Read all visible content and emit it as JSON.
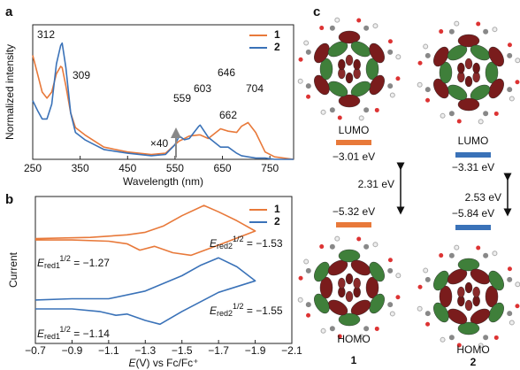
{
  "chart_data": [
    {
      "type": "line",
      "panel_label": "a",
      "xlabel": "Wavelength (nm)",
      "ylabel": "Normalized intensity",
      "x": [
        250,
        260,
        270,
        280,
        290,
        300,
        309,
        312,
        320,
        330,
        340,
        360,
        380,
        400,
        450,
        500,
        530,
        550,
        559,
        570,
        580,
        600,
        603,
        620,
        646,
        662,
        680,
        690,
        704,
        720,
        740,
        760,
        800
      ],
      "series": [
        {
          "name": "1",
          "color": "#e8793a",
          "values": [
            0.85,
            0.7,
            0.55,
            0.5,
            0.55,
            0.7,
            0.76,
            0.75,
            0.6,
            0.38,
            0.26,
            0.2,
            0.15,
            0.1,
            0.06,
            0.04,
            0.05,
            0.12,
            0.15,
            0.17,
            0.19,
            0.2,
            0.2,
            0.17,
            0.25,
            0.23,
            0.22,
            0.27,
            0.3,
            0.22,
            0.06,
            0.02,
            0
          ]
        },
        {
          "name": "2",
          "color": "#3a72b8",
          "values": [
            0.48,
            0.4,
            0.33,
            0.33,
            0.45,
            0.78,
            0.93,
            0.95,
            0.75,
            0.38,
            0.22,
            0.16,
            0.12,
            0.08,
            0.05,
            0.03,
            0.04,
            0.12,
            0.19,
            0.16,
            0.17,
            0.27,
            0.28,
            0.18,
            0.1,
            0.1,
            0.05,
            0.03,
            0.02,
            0.01,
            0.01,
            0,
            0
          ]
        }
      ],
      "xlim": [
        250,
        800
      ],
      "ylim": [
        0,
        1.1
      ],
      "xticks": [
        250,
        350,
        450,
        550,
        650,
        750
      ],
      "annotations": [
        "312",
        "309",
        "559",
        "603",
        "646",
        "662",
        "704",
        "×40"
      ]
    },
    {
      "type": "line",
      "panel_label": "b",
      "xlabel": {
        "symbol": "E",
        "text": "(V) vs Fc/Fc⁺"
      },
      "ylabel": "Current",
      "series": [
        {
          "name": "1",
          "color": "#e8793a",
          "x": [
            -0.7,
            -0.9,
            -1.1,
            -1.2,
            -1.27,
            -1.35,
            -1.45,
            -1.55,
            -1.7,
            -1.9,
            -1.8,
            -1.7,
            -1.62,
            -1.5,
            -1.4,
            -1.3,
            -1.2,
            -1.0,
            -0.7
          ],
          "values": [
            6.6,
            6.6,
            6.5,
            6.3,
            5.8,
            6.1,
            5.6,
            5.4,
            6.2,
            7.3,
            8.1,
            8.8,
            9.3,
            8.5,
            7.7,
            7.2,
            7.0,
            6.8,
            6.7
          ]
        },
        {
          "name": "2",
          "color": "#3a72b8",
          "x": [
            -0.7,
            -0.9,
            -1.05,
            -1.14,
            -1.2,
            -1.3,
            -1.38,
            -1.5,
            -1.7,
            -1.9,
            -1.8,
            -1.7,
            -1.6,
            -1.5,
            -1.3,
            -1.1,
            -0.9,
            -0.7
          ],
          "values": [
            1.2,
            1.2,
            1.0,
            0.7,
            0.8,
            0.3,
            0.0,
            1.0,
            2.5,
            3.4,
            4.5,
            5.2,
            4.6,
            3.8,
            2.6,
            2.0,
            2.0,
            1.9
          ]
        }
      ],
      "xlim": [
        -0.7,
        -2.1
      ],
      "ylim": [
        -1.5,
        10
      ],
      "xticks": [
        {
          "value": -0.7,
          "label": "−0.7"
        },
        {
          "value": -0.9,
          "label": "−0.9"
        },
        {
          "value": -1.1,
          "label": "−1.1"
        },
        {
          "value": -1.3,
          "label": "−1.3"
        },
        {
          "value": -1.5,
          "label": "−1.5"
        },
        {
          "value": -1.7,
          "label": "−1.7"
        },
        {
          "value": -1.9,
          "label": "−1.9"
        },
        {
          "value": -2.1,
          "label": "−2.1"
        }
      ],
      "annotations": [
        {
          "symbol": "E",
          "sub": "red2",
          "sup": "1/2",
          "text": " = −1.53"
        },
        {
          "symbol": "E",
          "sub": "red1",
          "sup": "1/2",
          "text": " = −1.27"
        },
        {
          "symbol": "E",
          "sub": "red2",
          "sup": "1/2",
          "text": " = −1.55"
        },
        {
          "symbol": "E",
          "sub": "red1",
          "sup": "1/2",
          "text": " = −1.14"
        }
      ]
    }
  ],
  "diagram": {
    "panel_label": "c",
    "molecules": [
      {
        "name": "1",
        "color": "#e8793a",
        "lumo": {
          "label": "LUMO",
          "energy": "−3.01 eV"
        },
        "gap": "2.31 eV",
        "homo": {
          "label": "HOMO",
          "energy": "−5.32 eV"
        }
      },
      {
        "name": "2",
        "color": "#3a72b8",
        "lumo": {
          "label": "LUMO",
          "energy": "−3.31 eV"
        },
        "gap": "2.53 eV",
        "homo": {
          "label": "HOMO",
          "energy": "−5.84 eV"
        }
      }
    ]
  }
}
